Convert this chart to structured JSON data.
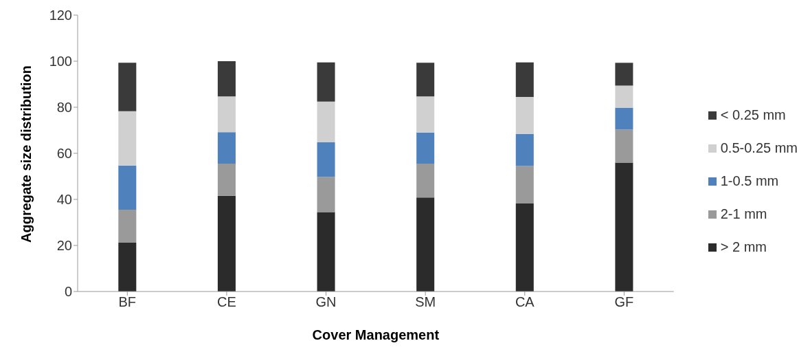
{
  "chart_data": {
    "type": "bar",
    "stacked": true,
    "xlabel": "Cover Management",
    "ylabel": "Aggregate size distribution",
    "categories": [
      "BF",
      "CE",
      "GN",
      "SM",
      "CA",
      "GF"
    ],
    "series": [
      {
        "name": "> 2 mm",
        "color": "#2b2b2b",
        "values": [
          21.2,
          41.6,
          34.5,
          40.8,
          38.2,
          56
        ]
      },
      {
        "name": "2-1 mm",
        "color": "#9a9a9a",
        "values": [
          14.3,
          13.9,
          15.3,
          14.7,
          16.3,
          14.3
        ]
      },
      {
        "name": "1-0.5 mm",
        "color": "#4f81bd",
        "values": [
          19.2,
          13.7,
          15,
          13.5,
          13.9,
          9.5
        ]
      },
      {
        "name": "0.5-0.25 mm",
        "color": "#d0d0d0",
        "values": [
          23.6,
          15.5,
          17.7,
          15.7,
          16.1,
          9.6
        ]
      },
      {
        "name": "< 0.25 mm",
        "color": "#3a3a3a",
        "values": [
          21,
          15.3,
          17,
          14.6,
          15,
          9.9
        ]
      }
    ],
    "ylim": [
      0,
      120
    ],
    "yticks": [
      0,
      20,
      40,
      60,
      80,
      100,
      120
    ],
    "grid": false,
    "legend": "right"
  }
}
